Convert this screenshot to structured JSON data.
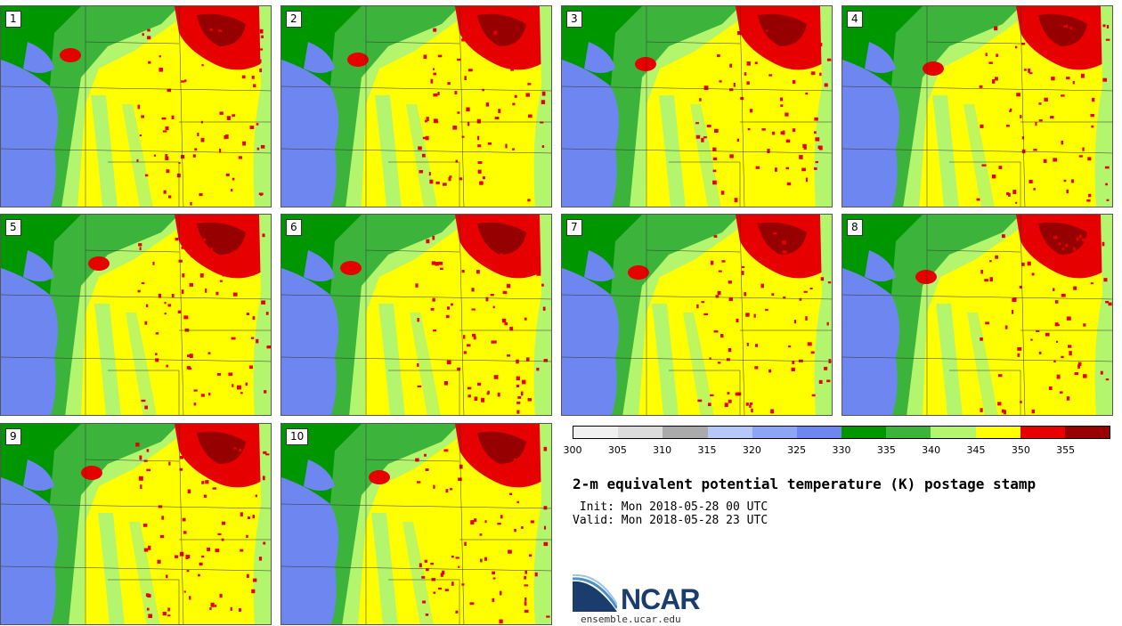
{
  "members": [
    {
      "label": "1",
      "variant": 0
    },
    {
      "label": "2",
      "variant": 1
    },
    {
      "label": "3",
      "variant": 2
    },
    {
      "label": "4",
      "variant": 3
    },
    {
      "label": "5",
      "variant": 4
    },
    {
      "label": "6",
      "variant": 5
    },
    {
      "label": "7",
      "variant": 6
    },
    {
      "label": "8",
      "variant": 7
    },
    {
      "label": "9",
      "variant": 8
    },
    {
      "label": "10",
      "variant": 9
    }
  ],
  "colorbar": {
    "colors": [
      "#f0f0f0",
      "#dcdcdc",
      "#aaaaaa",
      "#b4c8fa",
      "#8ca5f5",
      "#6e87f0",
      "#009600",
      "#3cb43c",
      "#b4f56e",
      "#ffff00",
      "#e60000",
      "#960000"
    ],
    "ticks": [
      "300",
      "305",
      "310",
      "315",
      "320",
      "325",
      "330",
      "335",
      "340",
      "345",
      "350",
      "355"
    ]
  },
  "title": "2-m equivalent potential temperature (K) postage stamp",
  "init": " Init: Mon 2018-05-28 00 UTC",
  "valid": "Valid: Mon 2018-05-28 23 UTC",
  "logo": {
    "text": "NCAR",
    "colors": {
      "navy": "#1a3d6e",
      "sky": "#4a90c8"
    }
  },
  "site": "ensemble.ucar.edu"
}
